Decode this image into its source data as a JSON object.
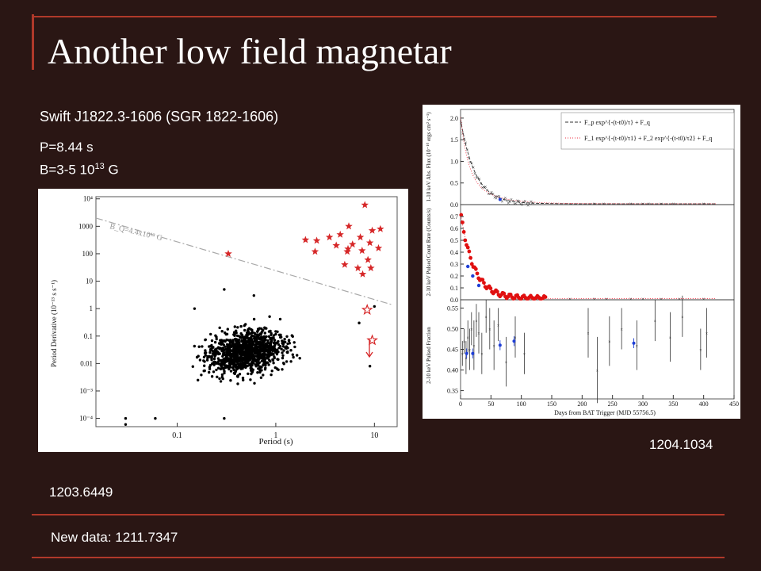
{
  "slide": {
    "title": "Another low field magnetar",
    "source_name": "Swift J1822.3-1606 (SGR 1822-1606)",
    "period": "P=8.44 s",
    "field_prefix": "B=3-5 10",
    "field_exp": "13",
    "field_suffix": " G",
    "ref_right": "1204.1034",
    "ref_left": "1203.6449",
    "new_data": "New data: 1211.7347"
  },
  "colors": {
    "background": "#2a1614",
    "accent": "#b0392a",
    "text": "#ffffff",
    "magnetar_red": "#d62728",
    "point_blue": "#1f3fd6"
  },
  "chart_data": [
    {
      "type": "scatter",
      "xscale": "log",
      "yscale": "log",
      "xlabel": "Period (s)",
      "ylabel": "Period Derivative (10⁻¹³ s s⁻¹)",
      "xlim": [
        0.015,
        17
      ],
      "ylim": [
        5e-05,
        12000
      ],
      "x_ticks": [
        "0.1",
        "1",
        "10"
      ],
      "y_ticks": [
        "10⁻⁴",
        "10⁻³",
        "0.01",
        "0.1",
        "1",
        "10",
        "100",
        "1000",
        "10⁴"
      ],
      "line_label": "B_Q=4.4x10¹³ G",
      "series": [
        {
          "name": "",
          "marker": "star",
          "color": "#d62728",
          "points": [
            [
              8,
              6000
            ],
            [
              9.5,
              700
            ],
            [
              5.5,
              1000
            ],
            [
              7.2,
              400
            ],
            [
              11.5,
              800
            ],
            [
              3.5,
              400
            ],
            [
              2.6,
              300
            ],
            [
              2,
              320
            ],
            [
              2.5,
              120
            ],
            [
              4.5,
              500
            ],
            [
              6,
              220
            ],
            [
              9,
              250
            ],
            [
              5.3,
              120
            ],
            [
              7.5,
              130
            ],
            [
              11,
              160
            ],
            [
              8.6,
              60
            ],
            [
              5,
              40
            ],
            [
              6.8,
              30
            ],
            [
              9.2,
              30
            ],
            [
              7.6,
              18
            ],
            [
              0.33,
              100
            ],
            [
              5.4,
              150
            ],
            [
              4.1,
              200
            ]
          ]
        },
        {
          "name": "",
          "marker": "open-star",
          "color": "#d62728",
          "points": [
            [
              8.44,
              0.9
            ],
            [
              9.5,
              0.07
            ]
          ]
        }
      ]
    },
    {
      "type": "line",
      "xlabel": "Days from BAT Trigger (MJD 55756.5)",
      "xlim": [
        0,
        450
      ],
      "x_ticks": [
        "0",
        "50",
        "100",
        "150",
        "200",
        "250",
        "300",
        "350",
        "400",
        "450"
      ],
      "panels": [
        {
          "ylabel": "1-10 keV Abs. Flux (10⁻¹⁰ ergs cm² s⁻¹)",
          "ylim": [
            0,
            2.2
          ],
          "y_ticks": [
            "0.0",
            "0.5",
            "1.0",
            "1.5",
            "2.0"
          ],
          "legend": [
            "F_p exp^{-(t-t0)/τ} + F_q",
            "F_1 exp^{-(t-t0)/τ1} + F_2 exp^{-(t-t0)/τ2} + F_q"
          ]
        },
        {
          "ylabel": "2-10 keV Pulsed Count Rate (Counts/s)",
          "ylim": [
            0,
            0.8
          ],
          "y_ticks": [
            "0.0",
            "0.1",
            "0.2",
            "0.3",
            "0.4",
            "0.5",
            "0.6",
            "0.7"
          ]
        },
        {
          "ylabel": "2-10 keV Pulsed Fraction",
          "ylim": [
            0.33,
            0.57
          ],
          "y_ticks": [
            "0.35",
            "0.40",
            "0.45",
            "0.50",
            "0.55"
          ]
        }
      ]
    }
  ]
}
